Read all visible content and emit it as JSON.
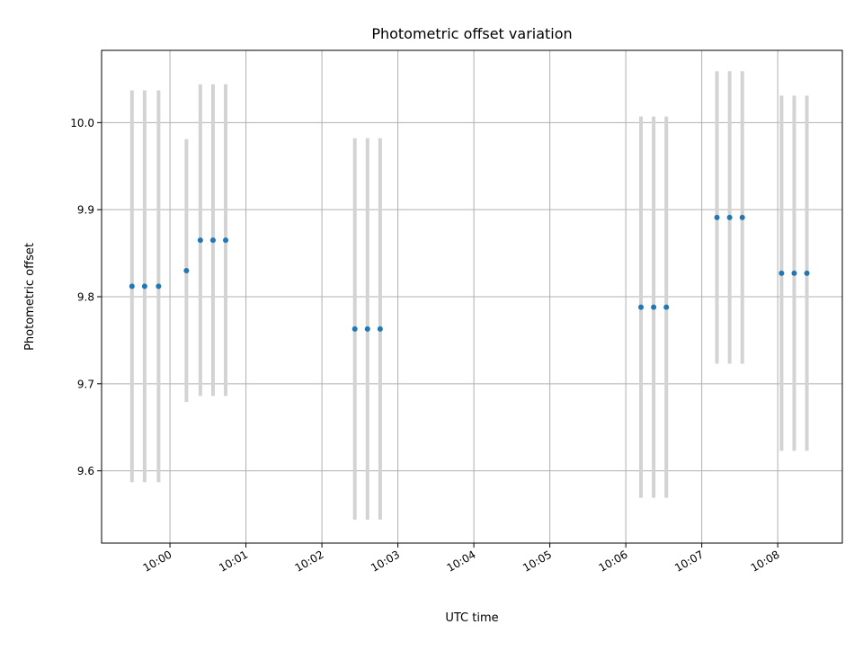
{
  "chart_data": {
    "type": "scatter",
    "title": "Photometric offset variation",
    "xlabel": "UTC time",
    "ylabel": "Photometric offset",
    "x_ticks": [
      "10:00",
      "10:01",
      "10:02",
      "10:03",
      "10:04",
      "10:05",
      "10:06",
      "10:07",
      "10:08"
    ],
    "y_ticks": [
      "9.6",
      "9.7",
      "9.8",
      "9.9",
      "10.0"
    ],
    "xlim_minutes_after_10": [
      -0.9,
      8.85
    ],
    "ylim": [
      9.517,
      10.083
    ],
    "grid": true,
    "colors": {
      "points": "#1f77b4",
      "errorbars": "#d3d3d3",
      "grid": "#b0b0b0"
    },
    "points": [
      {
        "t": "09:59:30",
        "y": 9.812,
        "err": 0.225
      },
      {
        "t": "09:59:40",
        "y": 9.812,
        "err": 0.225
      },
      {
        "t": "09:59:51",
        "y": 9.812,
        "err": 0.225
      },
      {
        "t": "10:00:13",
        "y": 9.83,
        "err": 0.151
      },
      {
        "t": "10:00:24",
        "y": 9.865,
        "err": 0.179
      },
      {
        "t": "10:00:34",
        "y": 9.865,
        "err": 0.179
      },
      {
        "t": "10:00:44",
        "y": 9.865,
        "err": 0.179
      },
      {
        "t": "10:02:26",
        "y": 9.763,
        "err": 0.219
      },
      {
        "t": "10:02:36",
        "y": 9.763,
        "err": 0.219
      },
      {
        "t": "10:02:46",
        "y": 9.763,
        "err": 0.219
      },
      {
        "t": "10:06:12",
        "y": 9.788,
        "err": 0.219
      },
      {
        "t": "10:06:22",
        "y": 9.788,
        "err": 0.219
      },
      {
        "t": "10:06:32",
        "y": 9.788,
        "err": 0.219
      },
      {
        "t": "10:07:12",
        "y": 9.891,
        "err": 0.168
      },
      {
        "t": "10:07:22",
        "y": 9.891,
        "err": 0.168
      },
      {
        "t": "10:07:32",
        "y": 9.891,
        "err": 0.168
      },
      {
        "t": "10:08:03",
        "y": 9.827,
        "err": 0.204
      },
      {
        "t": "10:08:13",
        "y": 9.827,
        "err": 0.204
      },
      {
        "t": "10:08:23",
        "y": 9.827,
        "err": 0.204
      }
    ]
  }
}
